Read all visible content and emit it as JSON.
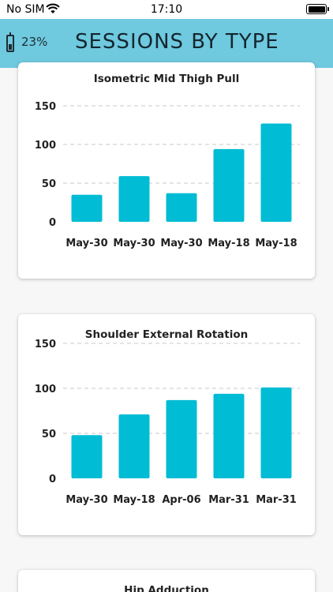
{
  "status_bar": {
    "carrier": "No SIM",
    "time": "17:10"
  },
  "header": {
    "battery_percent": "23%",
    "title": "SESSIONS BY TYPE"
  },
  "colors": {
    "header_bg": "#6fc9df",
    "bar": "#00bcd4"
  },
  "chart_data": [
    {
      "type": "bar",
      "title": "Isometric Mid Thigh Pull",
      "categories": [
        "May-30",
        "May-30",
        "May-30",
        "May-18",
        "May-18"
      ],
      "values": [
        35,
        59,
        37,
        94,
        127
      ],
      "ylim": [
        0,
        150
      ],
      "yticks": [
        0,
        50,
        100,
        150
      ],
      "grid": true
    },
    {
      "type": "bar",
      "title": "Shoulder External Rotation",
      "categories": [
        "May-30",
        "May-18",
        "Apr-06",
        "Mar-31",
        "Mar-31"
      ],
      "values": [
        48,
        71,
        87,
        94,
        101
      ],
      "ylim": [
        0,
        150
      ],
      "yticks": [
        0,
        50,
        100,
        150
      ],
      "grid": true
    },
    {
      "type": "bar",
      "title": "Hip Adduction",
      "categories": [],
      "values": []
    }
  ]
}
